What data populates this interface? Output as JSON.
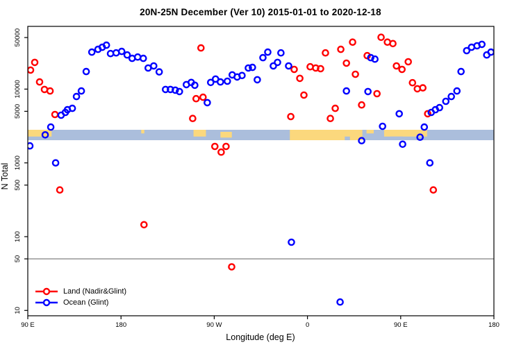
{
  "chart_data": {
    "type": "scatter",
    "title": "20N-25N December (Ver 10)   2015-01-01 to 2020-12-18",
    "xlabel": "Longitude (deg E)",
    "ylabel": "N Total",
    "x_axis": {
      "range_deg": [
        90,
        540
      ],
      "ticks_deg": [
        90,
        180,
        270,
        360,
        450,
        540
      ],
      "tick_labels": [
        "90 E",
        "180",
        "90 W",
        "0",
        "90 E",
        "180"
      ],
      "note": "longitude axis wraps eastward from 90E around the globe to 180"
    },
    "y_axis": {
      "scale": "log10",
      "range": [
        9,
        80000
      ],
      "ticks": [
        10,
        50,
        100,
        500,
        1000,
        5000,
        10000,
        50000
      ],
      "tick_labels": [
        "10",
        "50",
        "100",
        "500",
        "1000",
        "5000",
        "10000",
        "50000"
      ]
    },
    "reference_line": {
      "y": 50,
      "color": "#808080"
    },
    "grid": "off",
    "legend": {
      "position": "bottom-left",
      "entries": [
        {
          "label": "Land (Nadir&Glint)",
          "color": "#FF0000",
          "marker": "open-circle-on-line"
        },
        {
          "label": "Ocean (Glint)",
          "color": "#0000FF",
          "marker": "open-circle-on-line"
        }
      ]
    },
    "map_strip": {
      "description": "land/ocean world-map band for latitude 20N-25N drawn across the plot",
      "N_top": 2810,
      "N_bottom": 2030,
      "ocean_color": "#ABBEDC",
      "land_color": "#FBD87D",
      "land_segments": [
        {
          "from": 90,
          "to": 113,
          "part": "top"
        },
        {
          "from": 199.5,
          "to": 202.5,
          "part": "sliver_top"
        },
        {
          "from": 250,
          "to": 262,
          "part": "top"
        },
        {
          "from": 276,
          "to": 287,
          "part": "mid"
        },
        {
          "from": 343,
          "to": 413,
          "part": "full"
        },
        {
          "from": 417,
          "to": 424,
          "part": "sliver_top"
        },
        {
          "from": 434,
          "to": 475.5,
          "part": "top"
        }
      ],
      "ocean_notches": [
        {
          "from": 396,
          "to": 401,
          "part": "bottom"
        },
        {
          "from": 440,
          "to": 452,
          "part": "bottom"
        }
      ]
    },
    "series": [
      {
        "name": "Land (Nadir&Glint)",
        "color": "#FF0000",
        "points": [
          [
            92.7,
            18100
          ],
          [
            96.7,
            23000
          ],
          [
            101.4,
            12500
          ],
          [
            106.1,
            9900
          ],
          [
            111.5,
            9430
          ],
          [
            116.2,
            4530
          ],
          [
            120.9,
            430
          ],
          [
            202.2,
            145
          ],
          [
            249.2,
            4000
          ],
          [
            252.5,
            7420
          ],
          [
            257.2,
            36100
          ],
          [
            259.2,
            7760
          ],
          [
            270.6,
            1670
          ],
          [
            276.7,
            1400
          ],
          [
            281.4,
            1670
          ],
          [
            286.8,
            39
          ],
          [
            343.9,
            4240
          ],
          [
            347.2,
            18500
          ],
          [
            352.6,
            14000
          ],
          [
            356.6,
            8300
          ],
          [
            362.6,
            20100
          ],
          [
            368.0,
            19300
          ],
          [
            372.7,
            18900
          ],
          [
            377.4,
            31000
          ],
          [
            382.1,
            4000
          ],
          [
            386.8,
            5490
          ],
          [
            392.2,
            34600
          ],
          [
            397.6,
            22500
          ],
          [
            403.6,
            43300
          ],
          [
            406.3,
            15900
          ],
          [
            412.3,
            6100
          ],
          [
            417.7,
            28400
          ],
          [
            427.1,
            8670
          ],
          [
            431.1,
            50400
          ],
          [
            437.2,
            43300
          ],
          [
            442.5,
            41400
          ],
          [
            445.9,
            20600
          ],
          [
            451.3,
            18500
          ],
          [
            457.3,
            23500
          ],
          [
            461.4,
            12200
          ],
          [
            466.1,
            10100
          ],
          [
            471.4,
            10400
          ],
          [
            476.1,
            4630
          ],
          [
            481.5,
            430
          ]
        ]
      },
      {
        "name": "Ocean (Glint)",
        "color": "#0000FF",
        "points": [
          [
            92.0,
            1700
          ],
          [
            106.8,
            2400
          ],
          [
            112.2,
            3060
          ],
          [
            116.9,
            1000
          ],
          [
            122.2,
            4430
          ],
          [
            126.3,
            4830
          ],
          [
            128.3,
            5260
          ],
          [
            133.0,
            5490
          ],
          [
            137.0,
            7930
          ],
          [
            141.7,
            9430
          ],
          [
            146.4,
            17300
          ],
          [
            151.8,
            31700
          ],
          [
            157.8,
            34600
          ],
          [
            161.9,
            36900
          ],
          [
            165.9,
            39400
          ],
          [
            169.9,
            30300
          ],
          [
            175.3,
            31000
          ],
          [
            180.7,
            32400
          ],
          [
            186.0,
            29000
          ],
          [
            190.7,
            26100
          ],
          [
            196.1,
            27200
          ],
          [
            201.5,
            26100
          ],
          [
            206.2,
            19300
          ],
          [
            211.6,
            20600
          ],
          [
            216.9,
            17100
          ],
          [
            223.0,
            9900
          ],
          [
            227.7,
            9900
          ],
          [
            232.4,
            9680
          ],
          [
            236.4,
            9260
          ],
          [
            243.1,
            11500
          ],
          [
            247.8,
            12300
          ],
          [
            251.2,
            11300
          ],
          [
            263.3,
            6560
          ],
          [
            266.6,
            12300
          ],
          [
            271.3,
            13700
          ],
          [
            276.0,
            12500
          ],
          [
            282.7,
            12800
          ],
          [
            287.4,
            15600
          ],
          [
            292.1,
            14600
          ],
          [
            296.8,
            15300
          ],
          [
            302.9,
            19300
          ],
          [
            306.9,
            19700
          ],
          [
            311.6,
            13400
          ],
          [
            317.0,
            26700
          ],
          [
            321.7,
            31700
          ],
          [
            327.1,
            20600
          ],
          [
            331.1,
            23000
          ],
          [
            334.4,
            31000
          ],
          [
            341.8,
            20600
          ],
          [
            344.5,
            84
          ],
          [
            391.5,
            13
          ],
          [
            397.6,
            9430
          ],
          [
            412.3,
            2000
          ],
          [
            418.4,
            9260
          ],
          [
            421.1,
            26700
          ],
          [
            425.1,
            25500
          ],
          [
            432.5,
            3130
          ],
          [
            448.6,
            4630
          ],
          [
            451.9,
            1790
          ],
          [
            468.7,
            2230
          ],
          [
            472.8,
            3060
          ],
          [
            478.2,
            1000
          ],
          [
            479.5,
            4830
          ],
          [
            483.5,
            5260
          ],
          [
            487.5,
            5610
          ],
          [
            493.6,
            6830
          ],
          [
            498.9,
            7930
          ],
          [
            504.3,
            9430
          ],
          [
            508.3,
            17300
          ],
          [
            513.7,
            33200
          ],
          [
            518.4,
            36900
          ],
          [
            523.7,
            38600
          ],
          [
            528.4,
            40400
          ],
          [
            533.1,
            29000
          ],
          [
            537.2,
            31700
          ]
        ]
      }
    ]
  }
}
